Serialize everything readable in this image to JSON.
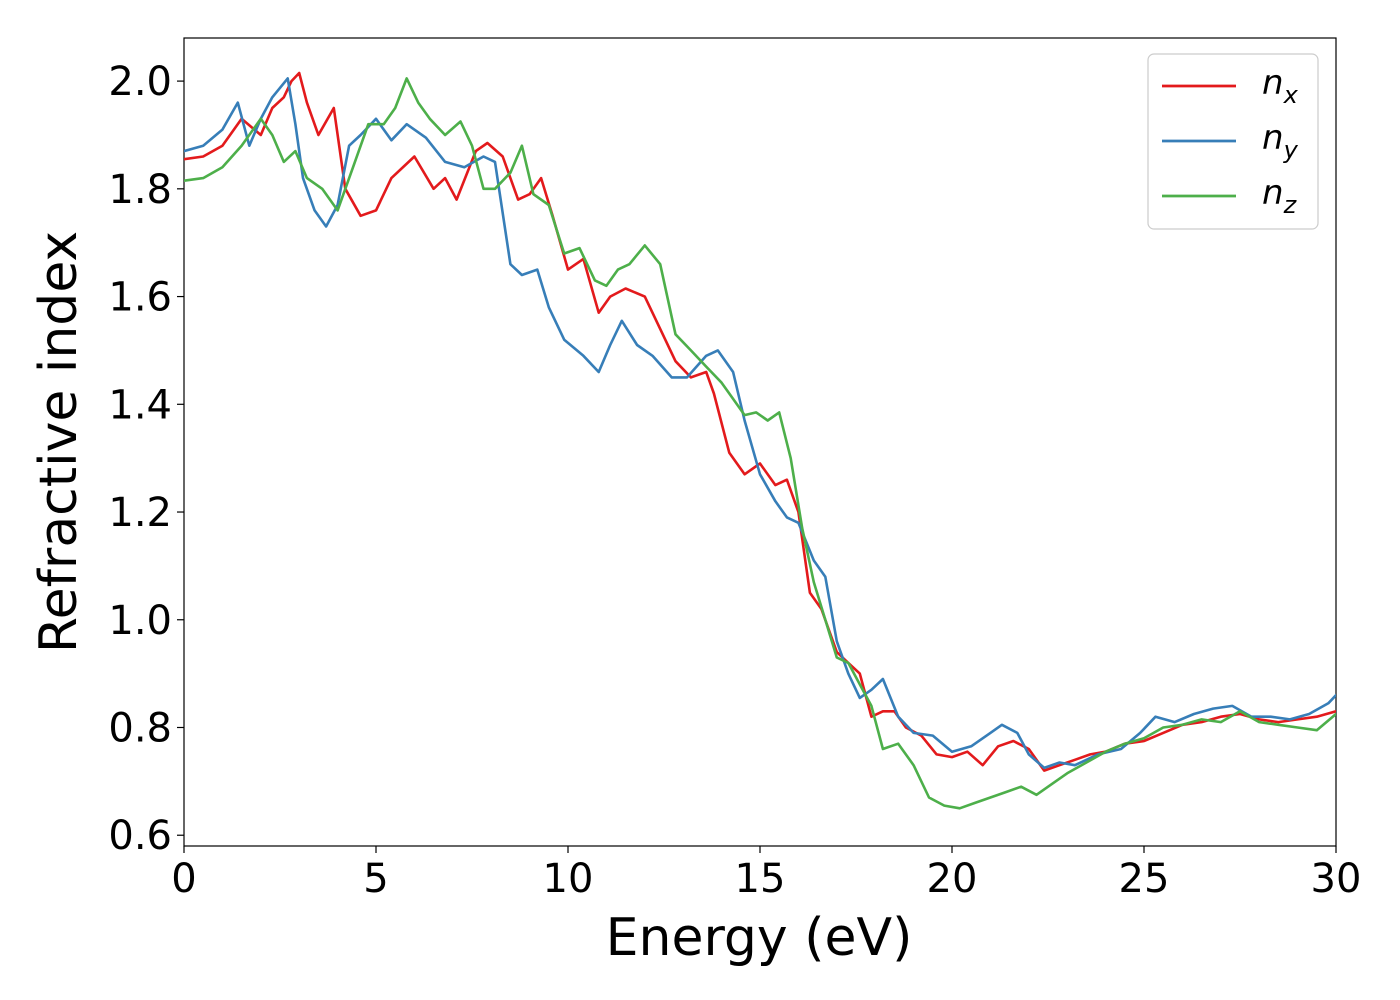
{
  "chart_data": {
    "type": "line",
    "title": "",
    "xlabel": "Energy (eV)",
    "ylabel": "Refractive index",
    "xlim": [
      0,
      30
    ],
    "ylim": [
      0.58,
      2.08
    ],
    "xticks": [
      0,
      5,
      10,
      15,
      20,
      25,
      30
    ],
    "xtick_labels": [
      "0",
      "5",
      "10",
      "15",
      "20",
      "25",
      "30"
    ],
    "yticks": [
      0.6,
      0.8,
      1.0,
      1.2,
      1.4,
      1.6,
      1.8,
      2.0
    ],
    "ytick_labels": [
      "0.6",
      "0.8",
      "1.0",
      "1.2",
      "1.4",
      "1.6",
      "1.8",
      "2.0"
    ],
    "grid": false,
    "legend": {
      "placement": "top-right"
    },
    "series": [
      {
        "name": "n",
        "subscript": "x",
        "color": "#e31a1c",
        "x": [
          0,
          0.5,
          1,
          1.5,
          2,
          2.3,
          2.6,
          2.8,
          3.0,
          3.2,
          3.5,
          3.9,
          4.2,
          4.6,
          5.0,
          5.4,
          6.0,
          6.5,
          6.8,
          7.1,
          7.6,
          7.9,
          8.3,
          8.7,
          9.0,
          9.3,
          9.6,
          10.0,
          10.4,
          10.8,
          11.1,
          11.5,
          12.0,
          12.4,
          12.8,
          13.2,
          13.6,
          13.8,
          14.2,
          14.6,
          15.0,
          15.4,
          15.7,
          16.0,
          16.3,
          16.6,
          17.0,
          17.3,
          17.6,
          17.9,
          18.2,
          18.5,
          18.8,
          19.2,
          19.6,
          20.0,
          20.4,
          20.8,
          21.2,
          21.6,
          22.0,
          22.4,
          22.8,
          23.2,
          23.6,
          24.0,
          24.5,
          25.0,
          25.5,
          26.0,
          26.5,
          27.0,
          27.5,
          28.0,
          28.5,
          29.0,
          29.5,
          30.0
        ],
        "y": [
          1.855,
          1.86,
          1.88,
          1.93,
          1.9,
          1.95,
          1.97,
          2.0,
          2.015,
          1.96,
          1.9,
          1.95,
          1.8,
          1.75,
          1.76,
          1.82,
          1.86,
          1.8,
          1.82,
          1.78,
          1.87,
          1.885,
          1.86,
          1.78,
          1.79,
          1.82,
          1.75,
          1.65,
          1.67,
          1.57,
          1.6,
          1.615,
          1.6,
          1.54,
          1.48,
          1.45,
          1.46,
          1.42,
          1.31,
          1.27,
          1.29,
          1.25,
          1.26,
          1.2,
          1.05,
          1.02,
          0.94,
          0.92,
          0.9,
          0.82,
          0.83,
          0.83,
          0.8,
          0.785,
          0.75,
          0.745,
          0.755,
          0.73,
          0.765,
          0.775,
          0.76,
          0.72,
          0.73,
          0.74,
          0.75,
          0.755,
          0.77,
          0.775,
          0.79,
          0.805,
          0.81,
          0.82,
          0.825,
          0.815,
          0.81,
          0.815,
          0.82,
          0.83
        ]
      },
      {
        "name": "n",
        "subscript": "y",
        "color": "#377eb8",
        "x": [
          0,
          0.5,
          1,
          1.4,
          1.7,
          2.0,
          2.3,
          2.7,
          2.9,
          3.1,
          3.4,
          3.7,
          4.0,
          4.3,
          4.6,
          5.0,
          5.4,
          5.8,
          6.3,
          6.8,
          7.3,
          7.8,
          8.1,
          8.5,
          8.8,
          9.2,
          9.5,
          9.9,
          10.4,
          10.8,
          11.1,
          11.4,
          11.8,
          12.2,
          12.7,
          13.1,
          13.6,
          13.9,
          14.3,
          14.6,
          15.0,
          15.4,
          15.7,
          16.0,
          16.4,
          16.7,
          17.0,
          17.3,
          17.6,
          17.9,
          18.2,
          18.6,
          19.0,
          19.5,
          20.0,
          20.5,
          21.0,
          21.3,
          21.7,
          22.0,
          22.4,
          22.8,
          23.2,
          23.8,
          24.4,
          24.9,
          25.3,
          25.8,
          26.3,
          26.8,
          27.3,
          27.8,
          28.3,
          28.8,
          29.3,
          29.8,
          30.0
        ],
        "y": [
          1.87,
          1.88,
          1.91,
          1.96,
          1.88,
          1.93,
          1.97,
          2.005,
          1.92,
          1.82,
          1.76,
          1.73,
          1.77,
          1.88,
          1.9,
          1.93,
          1.89,
          1.92,
          1.895,
          1.85,
          1.84,
          1.86,
          1.85,
          1.66,
          1.64,
          1.65,
          1.58,
          1.52,
          1.49,
          1.46,
          1.51,
          1.555,
          1.51,
          1.49,
          1.45,
          1.45,
          1.49,
          1.5,
          1.46,
          1.37,
          1.27,
          1.22,
          1.19,
          1.18,
          1.11,
          1.08,
          0.96,
          0.9,
          0.855,
          0.87,
          0.89,
          0.82,
          0.79,
          0.785,
          0.755,
          0.765,
          0.79,
          0.805,
          0.79,
          0.75,
          0.725,
          0.735,
          0.73,
          0.75,
          0.76,
          0.79,
          0.82,
          0.81,
          0.825,
          0.835,
          0.84,
          0.82,
          0.82,
          0.815,
          0.825,
          0.845,
          0.86
        ]
      },
      {
        "name": "n",
        "subscript": "z",
        "color": "#4daf4a",
        "x": [
          0,
          0.5,
          1,
          1.5,
          2.0,
          2.3,
          2.6,
          2.9,
          3.2,
          3.6,
          4.0,
          4.4,
          4.8,
          5.2,
          5.5,
          5.8,
          6.1,
          6.4,
          6.8,
          7.2,
          7.5,
          7.8,
          8.1,
          8.5,
          8.8,
          9.1,
          9.5,
          9.9,
          10.3,
          10.7,
          11.0,
          11.3,
          11.6,
          12.0,
          12.4,
          12.8,
          13.2,
          13.6,
          14.0,
          14.3,
          14.6,
          14.9,
          15.2,
          15.5,
          15.8,
          16.1,
          16.4,
          16.7,
          17.0,
          17.3,
          17.6,
          17.9,
          18.2,
          18.6,
          19.0,
          19.4,
          19.8,
          20.2,
          20.6,
          21.0,
          21.4,
          21.8,
          22.2,
          22.6,
          23.0,
          23.5,
          24.0,
          24.5,
          25.0,
          25.5,
          26.0,
          26.5,
          27.0,
          27.5,
          28.0,
          28.5,
          29.0,
          29.5,
          30.0
        ],
        "y": [
          1.815,
          1.82,
          1.84,
          1.88,
          1.93,
          1.9,
          1.85,
          1.87,
          1.82,
          1.8,
          1.76,
          1.84,
          1.92,
          1.92,
          1.95,
          2.005,
          1.96,
          1.93,
          1.9,
          1.925,
          1.88,
          1.8,
          1.8,
          1.83,
          1.88,
          1.79,
          1.77,
          1.68,
          1.69,
          1.63,
          1.62,
          1.65,
          1.66,
          1.695,
          1.66,
          1.53,
          1.5,
          1.47,
          1.44,
          1.41,
          1.38,
          1.385,
          1.37,
          1.385,
          1.3,
          1.17,
          1.07,
          1.0,
          0.93,
          0.92,
          0.88,
          0.84,
          0.76,
          0.77,
          0.73,
          0.67,
          0.655,
          0.65,
          0.66,
          0.67,
          0.68,
          0.69,
          0.675,
          0.695,
          0.715,
          0.735,
          0.755,
          0.77,
          0.78,
          0.8,
          0.805,
          0.815,
          0.81,
          0.83,
          0.81,
          0.805,
          0.8,
          0.795,
          0.825
        ]
      }
    ]
  }
}
